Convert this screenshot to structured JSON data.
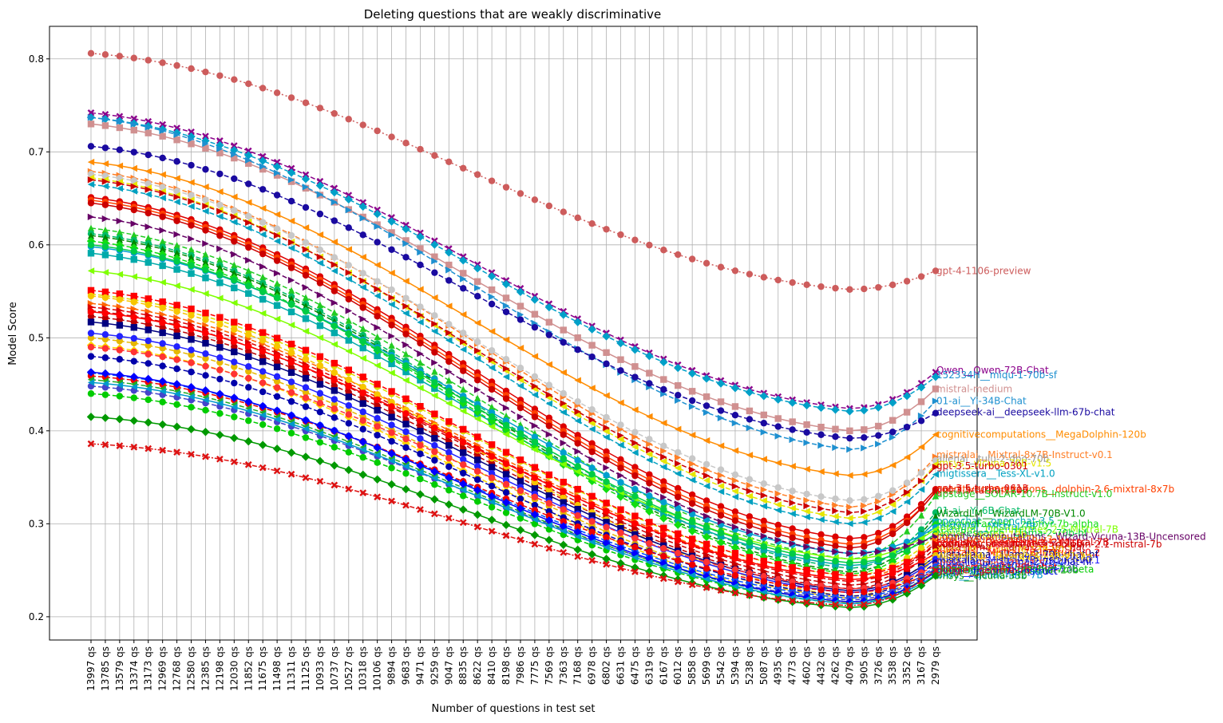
{
  "chart_data": {
    "type": "line",
    "title": "Deleting questions that are weakly discriminative",
    "xlabel": "Number of questions in test set",
    "ylabel": "Model Score",
    "ylim": [
      0.175,
      0.835
    ],
    "yticks": [
      0.2,
      0.3,
      0.4,
      0.5,
      0.6,
      0.7,
      0.8
    ],
    "grid": true,
    "x": [
      "13997 qs",
      "13785 qs",
      "13579 qs",
      "13374 qs",
      "13173 qs",
      "12969 qs",
      "12768 qs",
      "12580 qs",
      "12385 qs",
      "12198 qs",
      "12030 qs",
      "11852 qs",
      "11675 qs",
      "11498 qs",
      "11311 qs",
      "11125 qs",
      "10933 qs",
      "10737 qs",
      "10527 qs",
      "10318 qs",
      "10106 qs",
      "9894 qs",
      "9683 qs",
      "9471 qs",
      "9259 qs",
      "9047 qs",
      "8835 qs",
      "8622 qs",
      "8410 qs",
      "8198 qs",
      "7986 qs",
      "7775 qs",
      "7569 qs",
      "7363 qs",
      "7168 qs",
      "6978 qs",
      "6802 qs",
      "6631 qs",
      "6475 qs",
      "6319 qs",
      "6167 qs",
      "6012 qs",
      "5858 qs",
      "5699 qs",
      "5542 qs",
      "5394 qs",
      "5238 qs",
      "5087 qs",
      "4935 qs",
      "4773 qs",
      "4602 qs",
      "4432 qs",
      "4262 qs",
      "4079 qs",
      "3905 qs",
      "3726 qs",
      "3538 qs",
      "3352 qs",
      "3167 qs",
      "2979 qs"
    ],
    "series": [
      {
        "name": "gpt-4-1106-preview",
        "color": "#cd5c5c",
        "marker": "circle",
        "dash": "dot",
        "start": 0.806,
        "valley": 0.552,
        "end": 0.572
      },
      {
        "name": "Qwen__Qwen-72B-Chat",
        "color": "#8b008b",
        "marker": "x",
        "dash": "dash",
        "start": 0.742,
        "valley": 0.424,
        "end": 0.463
      },
      {
        "name": "152334H__miqu-1-70b-sf",
        "color": "#00a0c8",
        "marker": "diamond",
        "dash": "dash",
        "start": 0.737,
        "valley": 0.421,
        "end": 0.458
      },
      {
        "name": "mistral-medium",
        "color": "#d09090",
        "marker": "square",
        "dash": "solid",
        "start": 0.73,
        "valley": 0.4,
        "end": 0.445
      },
      {
        "name": "01-ai__Yi-34B-Chat",
        "color": "#1e90d0",
        "marker": "triangle-right",
        "dash": "dash",
        "start": 0.737,
        "valley": 0.38,
        "end": 0.432
      },
      {
        "name": "deepseek-ai__deepseek-llm-67b-chat",
        "color": "#1a0aa0",
        "marker": "circle",
        "dash": "dash",
        "start": 0.706,
        "valley": 0.392,
        "end": 0.419
      },
      {
        "name": "cognitivecomputations__MegaDolphin-120b",
        "color": "#ff8c00",
        "marker": "triangle-left",
        "dash": "solid",
        "start": 0.689,
        "valley": 0.352,
        "end": 0.396
      },
      {
        "name": "mistralai__Mixtral-8x7B-Instruct-v0.1",
        "color": "#ff7f27",
        "marker": "triangle-right",
        "dash": "dash",
        "start": 0.679,
        "valley": 0.318,
        "end": 0.372
      },
      {
        "name": "allenai__tulu-2-dpo-70b",
        "color": "#c8c8c8",
        "marker": "circle",
        "dash": "dash",
        "start": 0.676,
        "valley": 0.325,
        "end": 0.368
      },
      {
        "name": "Vicuna-70B-v1.5",
        "color": "#e6e600",
        "marker": "triangle-left",
        "dash": "dash",
        "start": 0.672,
        "valley": 0.306,
        "end": 0.364
      },
      {
        "name": "gpt-3.5-turbo-0301",
        "color": "#cc0000",
        "marker": "triangle-right",
        "dash": "dash",
        "start": 0.67,
        "valley": 0.312,
        "end": 0.361
      },
      {
        "name": "migtissera__Tess-XL-v1.0",
        "color": "#00a0c0",
        "marker": "triangle-left",
        "dash": "dash",
        "start": 0.665,
        "valley": 0.3,
        "end": 0.353
      },
      {
        "name": "gpt-3.5-turbo-0613",
        "color": "#dd0000",
        "marker": "circle",
        "dash": "solid",
        "start": 0.651,
        "valley": 0.284,
        "end": 0.337
      },
      {
        "name": "cognitivecomputations__dolphin-2.6-mixtral-8x7b",
        "color": "#ff4000",
        "marker": "circle",
        "dash": "solid",
        "start": 0.648,
        "valley": 0.278,
        "end": 0.334
      },
      {
        "name": "gpt-3.5-turbo-1106",
        "color": "#cc0000",
        "marker": "circle",
        "dash": "solid",
        "start": 0.645,
        "valley": 0.274,
        "end": 0.335
      },
      {
        "name": "upstage__SOLAR-10.7B-Instruct-v1.0",
        "color": "#22cc22",
        "marker": "triangle-up",
        "dash": "dash",
        "start": 0.618,
        "valley": 0.262,
        "end": 0.33
      },
      {
        "name": "01-ai__Yi-6B-Chat",
        "color": "#00bb66",
        "marker": "circle",
        "dash": "dash",
        "start": 0.612,
        "valley": 0.252,
        "end": 0.312
      },
      {
        "name": "WizardLM__WizardLM-70B-V1.0",
        "color": "#008800",
        "marker": "triangle-up",
        "dash": "dash",
        "start": 0.61,
        "valley": 0.248,
        "end": 0.308
      },
      {
        "name": "openchat__openchat-3.5",
        "color": "#00aaaa",
        "marker": "square",
        "dash": "solid",
        "start": 0.591,
        "valley": 0.255,
        "end": 0.302
      },
      {
        "name": "HuggingFaceH4__zephyr-7b-alpha",
        "color": "#11dd11",
        "marker": "diamond",
        "dash": "dash",
        "start": 0.604,
        "valley": 0.246,
        "end": 0.299
      },
      {
        "name": "mistralai__Mistral-7B",
        "color": "#009fcf",
        "marker": "circle",
        "dash": "solid",
        "start": 0.598,
        "valley": 0.268,
        "end": 0.296
      },
      {
        "name": "teknium__OpenHermes-2.5-Mistral-7B",
        "color": "#7fff00",
        "marker": "triangle-left",
        "dash": "solid",
        "start": 0.572,
        "valley": 0.262,
        "end": 0.294
      },
      {
        "name": "NousResearch__Llama-2-70b-hf",
        "color": "#00cc44",
        "marker": "circle",
        "dash": "solid",
        "start": 0.6,
        "valley": 0.258,
        "end": 0.289
      },
      {
        "name": "lmsys__vicuna-13b",
        "color": "#dddd00",
        "marker": "circle",
        "dash": "dash",
        "start": 0.547,
        "valley": 0.244,
        "end": 0.287
      },
      {
        "name": "cognitivecomputations__Wizard-Vicuna-13B-Uncensored",
        "color": "#660066",
        "marker": "triangle-right",
        "dash": "dash",
        "start": 0.63,
        "valley": 0.268,
        "end": 0.286
      },
      {
        "name": "Intel__neural-chat-7b-v3-1",
        "color": "#ff6600",
        "marker": "triangle-right",
        "dash": "dash",
        "start": 0.537,
        "valley": 0.24,
        "end": 0.282
      },
      {
        "name": "teknium__OpenHermes-2-Mistral-7B",
        "color": "#dd0000",
        "marker": "triangle-right",
        "dash": "dash",
        "start": 0.533,
        "valley": 0.238,
        "end": 0.279
      },
      {
        "name": "openchat__openchat-3.5-1210",
        "color": "#ff0000",
        "marker": "square",
        "dash": "dash",
        "start": 0.551,
        "valley": 0.244,
        "end": 0.277
      },
      {
        "name": "cognitivecomputations__dolphin-2.1-mistral-7b",
        "color": "#cc0000",
        "marker": "triangle-right",
        "dash": "dash",
        "start": 0.529,
        "valley": 0.234,
        "end": 0.278
      },
      {
        "name": "meta-llama__Llama-2-13b-chat",
        "color": "#bb0000",
        "marker": "circle",
        "dash": "dash",
        "start": 0.523,
        "valley": 0.23,
        "end": 0.274
      },
      {
        "name": "Xwin-LM__Xwin-LM-13B-V0.1",
        "color": "#f7c600",
        "marker": "circle",
        "dash": "dash",
        "start": 0.545,
        "valley": 0.222,
        "end": 0.27
      },
      {
        "name": "mistralai__Mistral-7B-Instruct-v0.2",
        "color": "#ff0000",
        "marker": "circle",
        "dash": "solid",
        "start": 0.528,
        "valley": 0.24,
        "end": 0.268
      },
      {
        "name": "meta-llama__Llama-2-70b-chat-hf",
        "color": "#000080",
        "marker": "square",
        "dash": "solid",
        "start": 0.517,
        "valley": 0.228,
        "end": 0.265
      },
      {
        "name": "WizardLM__WizardLM-13B-V1.2",
        "color": "#e6b800",
        "marker": "circle",
        "dash": "dash",
        "start": 0.5,
        "valley": 0.22,
        "end": 0.266
      },
      {
        "name": "Nexusflow__NexusRaven-V2-13B",
        "color": "#ffd700",
        "marker": "diamond",
        "dash": "dash",
        "start": 0.492,
        "valley": 0.215,
        "end": 0.263
      },
      {
        "name": "mistralai__Mistral-7B-Instruct-v0.1",
        "color": "#2222ff",
        "marker": "circle",
        "dash": "solid",
        "start": 0.505,
        "valley": 0.226,
        "end": 0.262
      },
      {
        "name": "meta-llama__Llama-2-7b-chat-hf",
        "color": "#0000aa",
        "marker": "circle",
        "dash": "dash",
        "start": 0.48,
        "valley": 0.222,
        "end": 0.258
      },
      {
        "name": "lmsys__vicuna-7b-v1.5",
        "color": "#ff3333",
        "marker": "circle",
        "dash": "dash",
        "start": 0.49,
        "valley": 0.23,
        "end": 0.255
      },
      {
        "name": "tiiuae__falcon-40b-instruct",
        "color": "#0050ff",
        "marker": "circle",
        "dash": "dash",
        "start": 0.462,
        "valley": 0.22,
        "end": 0.254
      },
      {
        "name": "mosaicml__mpt-30b-chat",
        "color": "#ee0000",
        "marker": "circle",
        "dash": "dash",
        "start": 0.459,
        "valley": 0.226,
        "end": 0.25
      },
      {
        "name": "stabilityai__StableBeluga-13B",
        "color": "#4444cc",
        "marker": "circle",
        "dash": "dash",
        "start": 0.448,
        "valley": 0.218,
        "end": 0.252
      },
      {
        "name": "HuggingFaceH4__zephyr-7b-beta",
        "color": "#00cc00",
        "marker": "circle",
        "dash": "dash",
        "start": 0.44,
        "valley": 0.214,
        "end": 0.25
      },
      {
        "name": "internlm__internlm2-chat-20b",
        "color": "#22aa22",
        "marker": "triangle-left",
        "dash": "dash",
        "start": 0.455,
        "valley": 0.216,
        "end": 0.249
      },
      {
        "name": "tiiuae__falcon-7b-instruct",
        "color": "#0000ff",
        "marker": "diamond",
        "dash": "solid",
        "start": 0.463,
        "valley": 0.216,
        "end": 0.248
      },
      {
        "name": "BAAI__AquilaChat2-7B",
        "color": "#0099cc",
        "marker": "triangle-left",
        "dash": "solid",
        "start": 0.452,
        "valley": 0.214,
        "end": 0.245
      },
      {
        "name": "lmsys__vicuna-33b",
        "color": "#009900",
        "marker": "diamond",
        "dash": "solid",
        "start": 0.415,
        "valley": 0.21,
        "end": 0.244
      },
      {
        "name": "google__gemma-7b",
        "color": "#dd1111",
        "marker": "x",
        "dash": "dashdot",
        "start": 0.386,
        "valley": 0.212,
        "end": 0.25
      }
    ],
    "labels": [
      {
        "text": "gpt-4-1106-preview",
        "value": 0.572,
        "color": "#cd5c5c"
      },
      {
        "text": "Qwen__Qwen-72B-Chat",
        "value": 0.465,
        "color": "#8b008b"
      },
      {
        "text": "152334H__miqu-1-70b-sf",
        "value": 0.46,
        "color": "#1e90d0"
      },
      {
        "text": "mistral-medium",
        "value": 0.445,
        "color": "#d09090"
      },
      {
        "text": "01-ai__Yi-34B-Chat",
        "value": 0.432,
        "color": "#1e90d0"
      },
      {
        "text": "deepseek-ai__deepseek-llm-67b-chat",
        "value": 0.42,
        "color": "#1a0aa0"
      },
      {
        "text": "cognitivecomputations__MegaDolphin-120b",
        "value": 0.396,
        "color": "#ff8c00"
      },
      {
        "text": "mistralai__Mixtral-8x7B-Instruct-v0.1",
        "value": 0.374,
        "color": "#ff7f27"
      },
      {
        "text": "allenai__tulu-2-dpo-70b",
        "value": 0.37,
        "color": "#999999"
      },
      {
        "text": "lmsys__vicuna-70B-v1.5",
        "value": 0.365,
        "color": "#e6e600"
      },
      {
        "text": "gpt-3.5-turbo-0301",
        "value": 0.362,
        "color": "#cc0000"
      },
      {
        "text": "migtissera__Tess-XL-v1.0",
        "value": 0.354,
        "color": "#00a0c0"
      },
      {
        "text": "gpt-3.5-turbo-0613",
        "value": 0.338,
        "color": "#dd0000"
      },
      {
        "text": "cognitivecomputations__dolphin-2.6-mixtral-8x7b",
        "value": 0.337,
        "color": "#ff4000"
      },
      {
        "text": "gpt-3.5-turbo-1106",
        "value": 0.336,
        "color": "#cc0000"
      },
      {
        "text": "upstage__SOLAR-10.7B-Instruct-v1.0",
        "value": 0.332,
        "color": "#22cc22"
      },
      {
        "text": "01-ai__Yi-6B-Chat",
        "value": 0.314,
        "color": "#00bb66"
      },
      {
        "text": "WizardLM__WizardLM-70B-V1.0",
        "value": 0.311,
        "color": "#008800"
      },
      {
        "text": "openchat__openchat-3.5",
        "value": 0.303,
        "color": "#00aaaa"
      },
      {
        "text": "HuggingFaceH4__zephyr-7b-alpha",
        "value": 0.3,
        "color": "#11dd11"
      },
      {
        "text": "mistralai__Mistral-7B",
        "value": 0.297,
        "color": "#009fcf"
      },
      {
        "text": "teknium__OpenHermes-2.5-Mistral-7B",
        "value": 0.294,
        "color": "#7fff00"
      },
      {
        "text": "NousResearch__Llama-2-70b-hf",
        "value": 0.29,
        "color": "#00cc44"
      },
      {
        "text": "lmsys__vicuna-13b",
        "value": 0.288,
        "color": "#dddd00"
      },
      {
        "text": "cognitivecomputations__Wizard-Vicuna-13B-Uncensored",
        "value": 0.286,
        "color": "#660066"
      },
      {
        "text": "Intel__neural-chat-7b-v3-1",
        "value": 0.283,
        "color": "#ff6600"
      },
      {
        "text": "teknium__OpenHermes-2-Mistral-7B",
        "value": 0.28,
        "color": "#dd0000"
      },
      {
        "text": "openchat__openchat-3.5-1210",
        "value": 0.279,
        "color": "#ff0000"
      },
      {
        "text": "cognitivecomputations__dolphin-2.1-mistral-7b",
        "value": 0.278,
        "color": "#cc0000"
      },
      {
        "text": "meta-llama__Llama-2-13b-chat",
        "value": 0.275,
        "color": "#bb0000"
      },
      {
        "text": "Xwin-LM__Xwin-LM-13B-V0.1",
        "value": 0.272,
        "color": "#f7c600"
      },
      {
        "text": "mistralai__Mistral-7B-Instruct-v0.2",
        "value": 0.269,
        "color": "#ff0000"
      },
      {
        "text": "meta-llama__Llama-2-70b-chat-hf",
        "value": 0.267,
        "color": "#000080"
      },
      {
        "text": "WizardLM__WizardLM-13B-V1.2",
        "value": 0.265,
        "color": "#e6b800"
      },
      {
        "text": "Nexusflow__NexusRaven-V2-13B",
        "value": 0.263,
        "color": "#ffd700"
      },
      {
        "text": "mistralai__Mistral-7B-Instruct-v0.1",
        "value": 0.261,
        "color": "#2222ff"
      },
      {
        "text": "meta-llama__Llama-2-7b-chat-hf",
        "value": 0.259,
        "color": "#0000aa"
      },
      {
        "text": "lmsys__vicuna-7b-v1.5",
        "value": 0.257,
        "color": "#ff3333"
      },
      {
        "text": "tiiuae__falcon-40b-instruct",
        "value": 0.255,
        "color": "#0050ff"
      },
      {
        "text": "mosaicml__mpt-30b-chat",
        "value": 0.253,
        "color": "#ee0000"
      },
      {
        "text": "stabilityai__StableBeluga-13B",
        "value": 0.252,
        "color": "#4444cc"
      },
      {
        "text": "HuggingFaceH4__zephyr-7b-beta",
        "value": 0.251,
        "color": "#00cc00"
      },
      {
        "text": "internlm__internlm2-chat-20b",
        "value": 0.25,
        "color": "#22aa22"
      },
      {
        "text": "tiiuae__falcon-7b-instruct",
        "value": 0.249,
        "color": "#0000ff"
      },
      {
        "text": "BAAI__AquilaChat2-7B",
        "value": 0.245,
        "color": "#0099cc"
      },
      {
        "text": "lmsys__vicuna-33b",
        "value": 0.244,
        "color": "#009900"
      },
      {
        "text": "google__gemma-7b",
        "value": 0.25,
        "color": "#dd1111"
      }
    ]
  }
}
